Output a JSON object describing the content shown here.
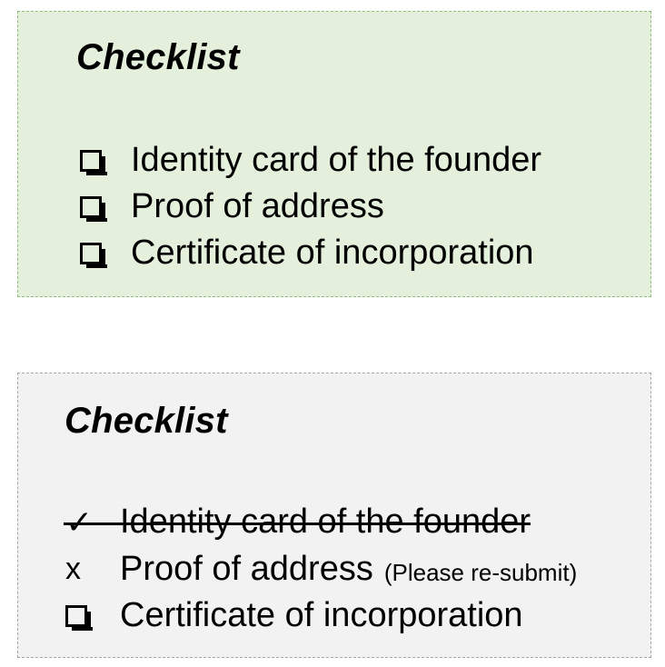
{
  "card_pending": {
    "title": "Checklist",
    "items": [
      {
        "label": "Identity card of the founder",
        "status": "unchecked"
      },
      {
        "label": "Proof of address",
        "status": "unchecked"
      },
      {
        "label": "Certificate of incorporation",
        "status": "unchecked"
      }
    ]
  },
  "card_reviewed": {
    "title": "Checklist",
    "items": [
      {
        "marker": "✓",
        "label": "Identity card of the founder",
        "status": "completed"
      },
      {
        "marker": "x",
        "label": "Proof of address",
        "note": "(Please re-submit)",
        "status": "rejected"
      },
      {
        "label": "Certificate of incorporation",
        "status": "unchecked"
      }
    ]
  },
  "colors": {
    "pending_card_bg": "#e4efdc",
    "reviewed_card_bg": "#f1f2f1"
  }
}
